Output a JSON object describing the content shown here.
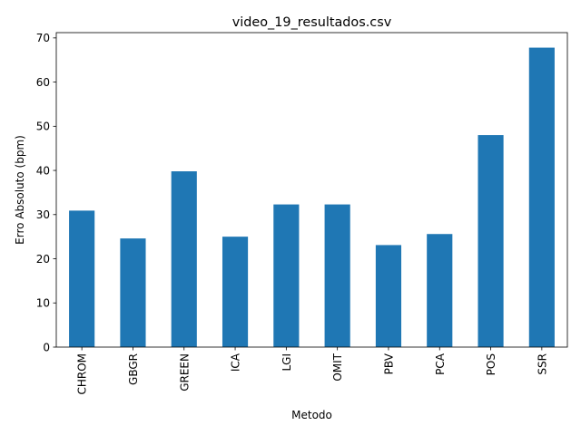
{
  "chart_data": {
    "type": "bar",
    "title": "video_19_resultados.csv",
    "xlabel": "Metodo",
    "ylabel": "Erro Absoluto (bpm)",
    "categories": [
      "CHROM",
      "GBGR",
      "GREEN",
      "ICA",
      "LGI",
      "OMIT",
      "PBV",
      "PCA",
      "POS",
      "SSR"
    ],
    "values": [
      30.9,
      24.6,
      39.8,
      25.0,
      32.3,
      32.3,
      23.1,
      25.6,
      48.0,
      67.8
    ],
    "ylim": [
      0,
      71.2
    ],
    "yticks": [
      0,
      10,
      20,
      30,
      40,
      50,
      60,
      70
    ],
    "grid": false,
    "legend": "none",
    "bar_color": "#1f77b4"
  }
}
